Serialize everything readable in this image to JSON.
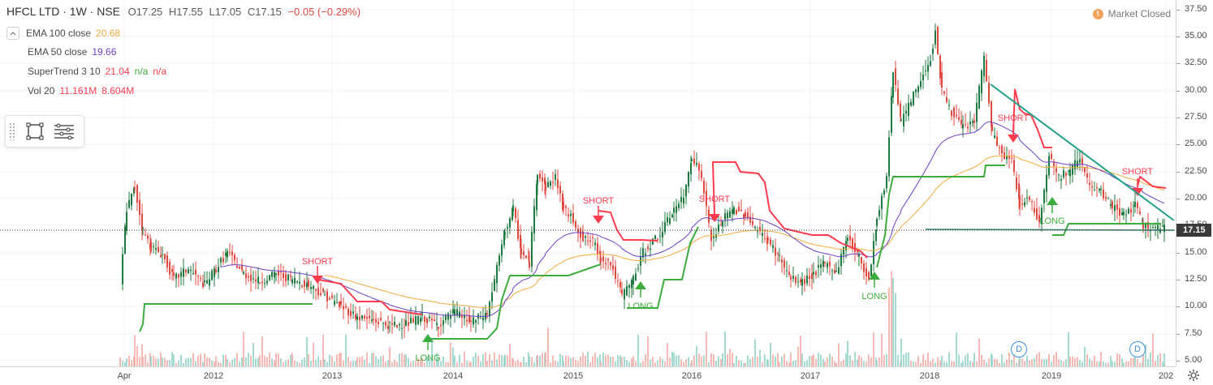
{
  "header": {
    "symbol_line": "HFCL LTD · 1W · NSE",
    "open": "O17.25",
    "high": "H17.55",
    "low": "L17.05",
    "close": "C17.15",
    "change": "−0.05 (−0.29%)"
  },
  "legend": {
    "collapse_icon": "chevron-up-icon",
    "ema100": {
      "label": "EMA 100 close",
      "value": "20.68",
      "color": "#f2a93b"
    },
    "ema50": {
      "label": "EMA 50 close",
      "value": "19.66",
      "color": "#6c3fc4"
    },
    "supertrend": {
      "label": "SuperTrend 3 10",
      "value": "21.04",
      "na1": "n/a",
      "na2": "n/a",
      "color": "#ff3b4e",
      "na_color": "#3cad3c"
    },
    "volume": {
      "label": "Vol 20",
      "value1": "11.161M",
      "value2": "8.604M",
      "color": "#ff3b4e"
    }
  },
  "drawing_panel": {
    "tools": [
      "rectangle-tool-icon",
      "object-tree-icon"
    ]
  },
  "market_status": {
    "label": "Market Closed",
    "icon": "exclamation-icon",
    "icon_text": "!",
    "icon_color": "#f5a35a"
  },
  "price_axis": {
    "ticks": [
      "37.50",
      "35.00",
      "32.50",
      "30.00",
      "27.50",
      "25.00",
      "22.50",
      "20.00",
      "17.50",
      "15.00",
      "12.50",
      "10.00",
      "7.50",
      "5.00"
    ],
    "last_price": "17.15"
  },
  "time_axis": {
    "ticks": [
      "Apr",
      "2012",
      "2013",
      "2014",
      "2015",
      "2016",
      "2017",
      "2018",
      "2019",
      "202"
    ]
  },
  "dividend_badges": [
    "D",
    "D"
  ],
  "signals": {
    "long_label": "LONG",
    "short_label": "SHORT",
    "long_color": "#3cad3c",
    "short_color": "#ff3b4e"
  },
  "colors": {
    "up_candle": "#1f7a3f",
    "down_candle": "#e0493f",
    "trendline": "#22a08a",
    "volume_up": "#8fd1c6",
    "volume_down": "#f4a7a1"
  }
}
